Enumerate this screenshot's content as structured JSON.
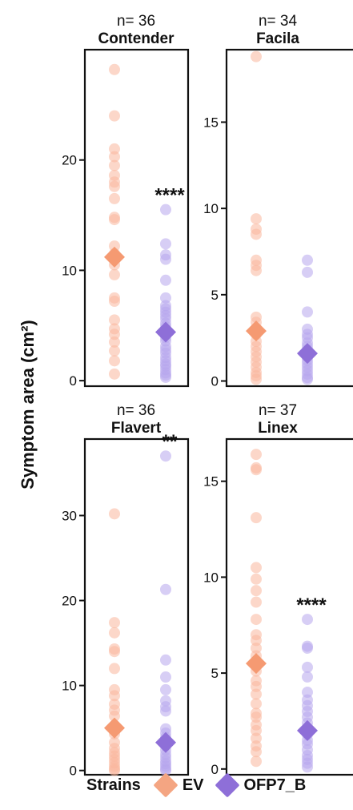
{
  "ylabel": "Symptom area (cm²)",
  "legend": {
    "title": "Strains",
    "items": [
      {
        "label": "EV",
        "color": "#F4A582"
      },
      {
        "label": "OFP7_B",
        "color": "#8E6FD8"
      }
    ]
  },
  "colors": {
    "ev": "#F9B79C",
    "ofp": "#B7A6EC",
    "ev_mean": "#F59A72",
    "ofp_mean": "#8E6FD8"
  },
  "chart_data": [
    {
      "type": "scatter",
      "n_label": "n= 36",
      "title": "Contender",
      "ylim": [
        -0.5,
        30
      ],
      "yticks": [
        0,
        10,
        20
      ],
      "significance": "****",
      "series": [
        {
          "name": "EV",
          "mean": 11.2,
          "values": [
            28.2,
            24.0,
            21.0,
            20.3,
            19.5,
            18.6,
            18.0,
            17.6,
            16.5,
            14.8,
            14.6,
            12.2,
            11.5,
            11.0,
            10.5,
            9.6,
            7.5,
            7.2,
            5.5,
            4.7,
            4.2,
            3.5,
            2.7,
            1.8,
            0.6
          ]
        },
        {
          "name": "OFP7_B",
          "mean": 4.4,
          "values": [
            15.5,
            12.4,
            11.4,
            11.0,
            9.1,
            7.5,
            6.8,
            6.5,
            6.2,
            5.9,
            5.6,
            5.2,
            4.9,
            4.6,
            4.2,
            3.9,
            3.6,
            3.1,
            2.8,
            2.5,
            2.1,
            1.8,
            1.5,
            1.3,
            1.0,
            0.7,
            0.5,
            0.3
          ]
        }
      ]
    },
    {
      "type": "scatter",
      "n_label": "n= 34",
      "title": "Facila",
      "ylim": [
        -0.3,
        19.2
      ],
      "yticks": [
        0,
        5,
        10,
        15
      ],
      "significance": "",
      "series": [
        {
          "name": "EV",
          "mean": 2.9,
          "values": [
            18.8,
            9.4,
            8.8,
            8.5,
            7.0,
            6.7,
            6.4,
            3.7,
            3.4,
            3.0,
            2.7,
            2.3,
            2.0,
            1.7,
            1.4,
            1.1,
            0.8,
            0.5,
            0.3,
            0.1
          ]
        },
        {
          "name": "OFP7_B",
          "mean": 1.6,
          "values": [
            7.0,
            6.3,
            4.0,
            3.0,
            2.7,
            2.5,
            2.2,
            2.0,
            1.8,
            1.6,
            1.4,
            1.2,
            1.0,
            0.8,
            0.6,
            0.4,
            0.2,
            0.1
          ]
        }
      ]
    },
    {
      "type": "scatter",
      "n_label": "n= 36",
      "title": "Flavert",
      "ylim": [
        -0.5,
        39
      ],
      "yticks": [
        0,
        10,
        20,
        30
      ],
      "significance": "**",
      "series": [
        {
          "name": "EV",
          "mean": 5.0,
          "values": [
            30.2,
            17.4,
            16.2,
            14.3,
            14.0,
            12.0,
            9.5,
            8.8,
            7.8,
            7.1,
            6.4,
            5.3,
            4.3,
            3.3,
            2.6,
            2.1,
            1.7,
            1.3,
            0.9,
            0.5,
            0.2,
            0.0
          ]
        },
        {
          "name": "OFP7_B",
          "mean": 3.3,
          "values": [
            37.0,
            21.3,
            13.0,
            11.0,
            9.5,
            8.2,
            7.5,
            7.0,
            4.9,
            4.4,
            3.9,
            3.4,
            2.9,
            2.4,
            1.9,
            1.5,
            1.1,
            0.8,
            0.5,
            0.2,
            0.0
          ]
        }
      ]
    },
    {
      "type": "scatter",
      "n_label": "n= 37",
      "title": "Linex",
      "ylim": [
        -0.3,
        17.2
      ],
      "yticks": [
        0,
        5,
        10,
        15
      ],
      "significance": "****",
      "series": [
        {
          "name": "EV",
          "mean": 5.5,
          "values": [
            16.4,
            15.7,
            15.6,
            13.1,
            10.5,
            9.9,
            9.3,
            8.7,
            7.8,
            7.0,
            6.7,
            6.3,
            5.9,
            5.5,
            5.1,
            4.6,
            4.3,
            3.9,
            3.4,
            2.9,
            2.7,
            2.3,
            2.0,
            1.6,
            1.2,
            0.9,
            0.4
          ]
        },
        {
          "name": "OFP7_B",
          "mean": 2.0,
          "values": [
            7.8,
            6.4,
            6.3,
            5.3,
            4.8,
            4.0,
            3.6,
            3.3,
            3.0,
            2.7,
            2.4,
            2.1,
            1.8,
            1.5,
            1.3,
            1.0,
            0.7,
            0.5,
            0.3,
            0.1
          ]
        }
      ]
    }
  ]
}
